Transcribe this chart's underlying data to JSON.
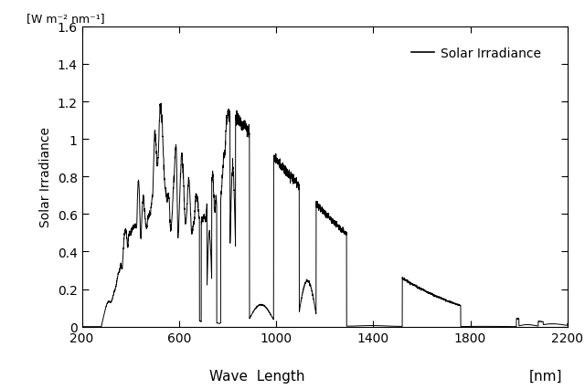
{
  "xlabel_left": "Wave  Length",
  "xlabel_right": "[nm]",
  "ylabel_top": "[W m⁻² nm⁻¹]",
  "ylabel_bottom": "Solar Irradiance",
  "xlim": [
    200,
    2200
  ],
  "ylim": [
    0,
    1.6
  ],
  "xticks": [
    200,
    600,
    1000,
    1400,
    1800,
    2200
  ],
  "yticks": [
    0,
    0.2,
    0.4,
    0.6,
    0.8,
    1.0,
    1.2,
    1.4,
    1.6
  ],
  "ytick_labels": [
    "0",
    "0.2",
    "0.4",
    "0.6",
    "0.8",
    "1",
    "1.2",
    "1.4",
    "1.6"
  ],
  "legend_label": "Solar Irradiance",
  "line_color": "#000000",
  "background_color": "#ffffff"
}
